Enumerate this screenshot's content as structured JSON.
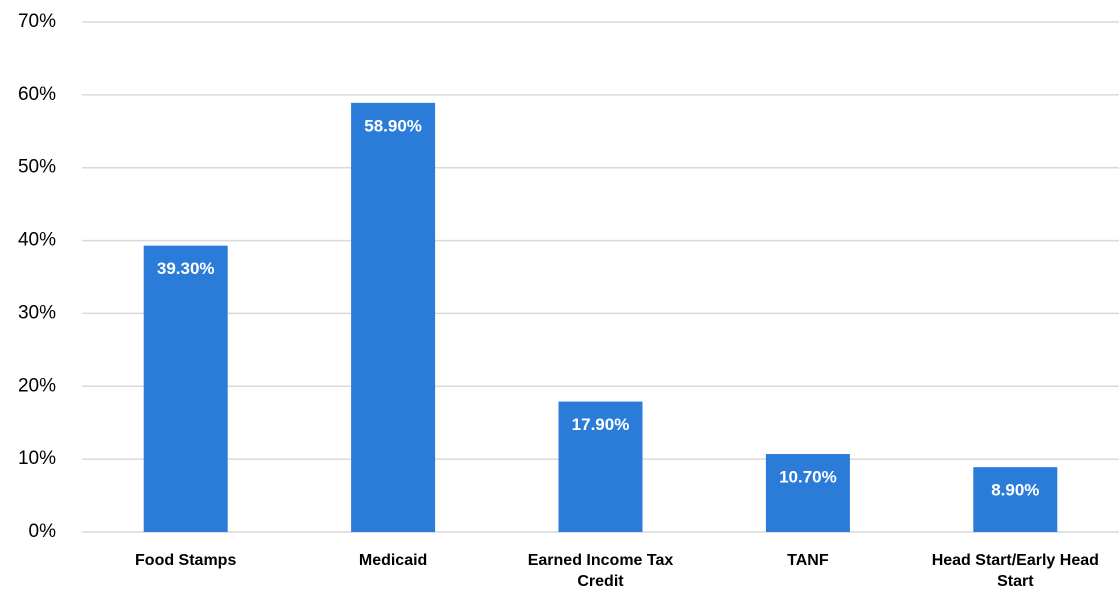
{
  "chart_data": {
    "type": "bar",
    "categories": [
      "Food Stamps",
      "Medicaid",
      "Earned Income Tax Credit",
      "TANF",
      "Head Start/Early Head Start"
    ],
    "values": [
      39.3,
      58.9,
      17.9,
      10.7,
      8.9
    ],
    "value_labels": [
      "39.30%",
      "58.90%",
      "17.90%",
      "10.70%",
      "8.90%"
    ],
    "color": "#2b7cd8",
    "ylim": [
      0,
      70
    ],
    "yticks": [
      {
        "value": 0,
        "label": "0%"
      },
      {
        "value": 10,
        "label": "10%"
      },
      {
        "value": 20,
        "label": "20%"
      },
      {
        "value": 30,
        "label": "30%"
      },
      {
        "value": 40,
        "label": "40%"
      },
      {
        "value": 50,
        "label": "50%"
      },
      {
        "value": 60,
        "label": "60%"
      },
      {
        "value": 70,
        "label": "70%"
      }
    ],
    "grid": true
  }
}
